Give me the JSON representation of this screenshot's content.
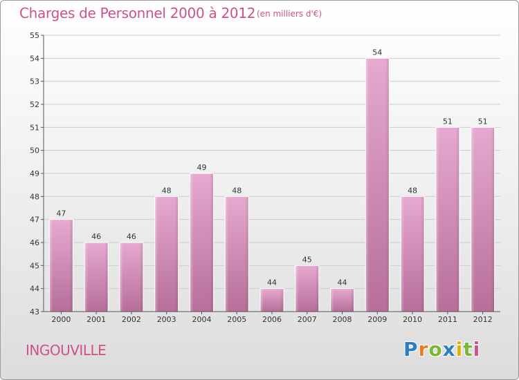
{
  "header": {
    "title": "Charges de Personnel 2000 à 2012",
    "subtitle": "(en milliers d'€)"
  },
  "footer": {
    "place": "INGOUVILLE",
    "logo_letters": [
      "P",
      "r",
      "o",
      "x",
      "i",
      "t",
      "i"
    ],
    "logo_colors": [
      "#2e7fc2",
      "#e67e22",
      "#7ab834",
      "#2e7fc2",
      "#e2b000",
      "#7ab834",
      "#d0508a"
    ]
  },
  "colors": {
    "bar_light": "#e6a9cf",
    "bar_dark": "#b66f99",
    "accent": "#d0508a",
    "grid": "#cccccc"
  },
  "chart_data": {
    "type": "bar",
    "title": "Charges de Personnel 2000 à 2012",
    "subtitle": "(en milliers d'€)",
    "categories": [
      "2000",
      "2001",
      "2002",
      "2003",
      "2004",
      "2005",
      "2006",
      "2007",
      "2008",
      "2009",
      "2010",
      "2011",
      "2012"
    ],
    "values": [
      47,
      46,
      46,
      48,
      49,
      48,
      44,
      45,
      44,
      54,
      48,
      51,
      51
    ],
    "ylim": [
      43,
      55
    ],
    "yticks": [
      43,
      44,
      45,
      46,
      47,
      48,
      49,
      50,
      51,
      52,
      53,
      54,
      55
    ],
    "grid": true,
    "xlabel": "",
    "ylabel": ""
  }
}
